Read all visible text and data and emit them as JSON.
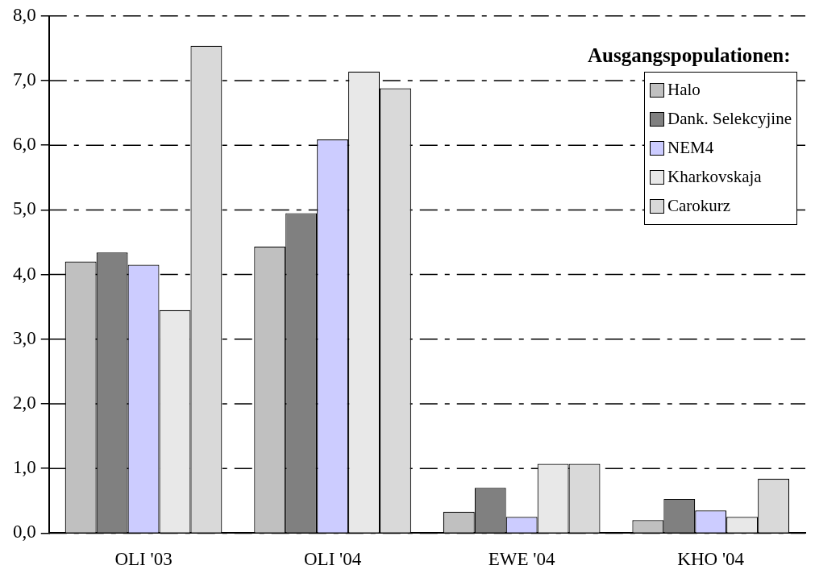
{
  "chart_data": {
    "type": "bar",
    "legend_title": "Ausgangspopulationen:",
    "categories": [
      "OLI '03",
      "OLI '04",
      "EWE '04",
      "KHO '04"
    ],
    "series": [
      {
        "name": "Halo",
        "color": "#c0c0c0",
        "values": [
          4.2,
          4.43,
          0.33,
          0.2
        ]
      },
      {
        "name": "Dank. Selekcyjine",
        "color": "#808080",
        "values": [
          4.34,
          4.95,
          0.7,
          0.53
        ]
      },
      {
        "name": "NEM4",
        "color": "#ccccff",
        "values": [
          4.15,
          6.09,
          0.25,
          0.35
        ]
      },
      {
        "name": "Kharkovskaja",
        "color": "#e8e8e8",
        "values": [
          3.45,
          7.14,
          1.07,
          0.25
        ]
      },
      {
        "name": "Carokurz",
        "color": "#d9d9d9",
        "values": [
          7.54,
          6.88,
          1.07,
          0.84
        ]
      }
    ],
    "ylim": [
      0,
      8
    ],
    "yticks": [
      {
        "value": 0,
        "label": "0,0"
      },
      {
        "value": 1,
        "label": "1,0"
      },
      {
        "value": 2,
        "label": "2,0"
      },
      {
        "value": 3,
        "label": "3,0"
      },
      {
        "value": 4,
        "label": "4,0"
      },
      {
        "value": 5,
        "label": "5,0"
      },
      {
        "value": 6,
        "label": "6,0"
      },
      {
        "value": 7,
        "label": "7,0"
      },
      {
        "value": 8,
        "label": "8,0"
      }
    ],
    "grid": "y",
    "line_style": "dashed",
    "legend": "top right"
  }
}
